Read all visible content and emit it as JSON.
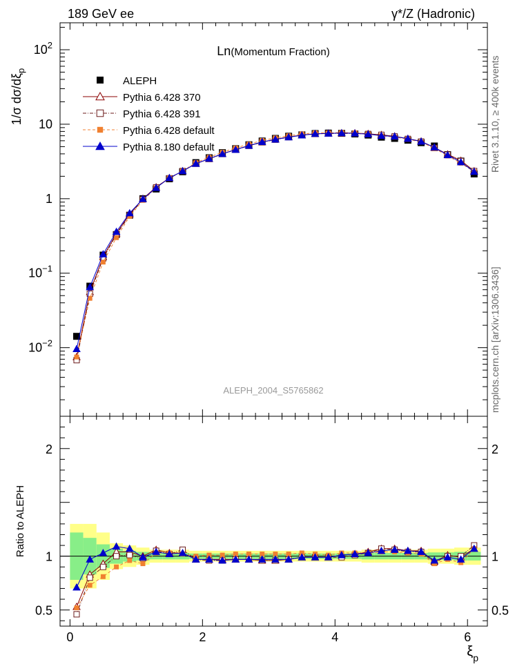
{
  "header": {
    "left_title": "189 GeV ee",
    "right_title": "γ*/Z (Hadronic)"
  },
  "side_labels": {
    "rivet": "Rivet 3.1.10, ≥ 400k events",
    "mcplots": "mcplots.cern.ch [arXiv:1306.3436]"
  },
  "chart_data": [
    {
      "type": "line",
      "panel": "main",
      "title": "Ln(Momentum Fraction)",
      "title_prefix": "Ln",
      "title_rest": "(Momentum Fraction)",
      "watermark": "ALEPH_2004_S5765862",
      "xlabel": "ξp",
      "ylabel": "1/σ dσ/dξp",
      "xlim": [
        -0.15,
        6.3
      ],
      "ylim": [
        0.0012,
        230
      ],
      "yscale": "log",
      "y_ticks": [
        {
          "value": 0.01,
          "base": "10",
          "exp": "−2"
        },
        {
          "value": 0.1,
          "base": "10",
          "exp": "−1"
        },
        {
          "value": 1,
          "base": "1",
          "exp": ""
        },
        {
          "value": 10,
          "base": "10",
          "exp": ""
        },
        {
          "value": 100,
          "base": "10",
          "exp": "2"
        }
      ],
      "legend": {
        "position": "top-left"
      },
      "x": [
        0.1,
        0.3,
        0.5,
        0.7,
        0.9,
        1.1,
        1.3,
        1.5,
        1.7,
        1.9,
        2.1,
        2.3,
        2.5,
        2.7,
        2.9,
        3.1,
        3.3,
        3.5,
        3.7,
        3.9,
        4.1,
        4.3,
        4.5,
        4.7,
        4.9,
        5.1,
        5.3,
        5.5,
        5.7,
        5.9,
        6.1
      ],
      "data": {
        "name": "ALEPH",
        "values": [
          0.0142,
          0.067,
          0.175,
          0.33,
          0.6,
          1.0,
          1.35,
          1.85,
          2.3,
          3.05,
          3.55,
          4.15,
          4.7,
          5.3,
          5.95,
          6.45,
          6.9,
          7.2,
          7.5,
          7.6,
          7.55,
          7.4,
          7.15,
          6.7,
          6.45,
          6.1,
          5.65,
          5.1,
          3.9,
          3.2,
          2.15
        ]
      },
      "series": [
        {
          "name": "Pythia 6.428 370",
          "color": "#8b0000",
          "marker": "triangle-open",
          "values": [
            0.0075,
            0.056,
            0.165,
            0.34,
            0.62,
            1.0,
            1.43,
            1.9,
            2.35,
            2.95,
            3.43,
            4.0,
            4.58,
            5.15,
            5.75,
            6.3,
            6.75,
            7.15,
            7.45,
            7.55,
            7.6,
            7.6,
            7.45,
            7.2,
            6.9,
            6.4,
            5.9,
            4.85,
            3.95,
            3.25,
            2.35
          ]
        },
        {
          "name": "Pythia 6.428 391",
          "color": "#6b1a1a",
          "marker": "square-open",
          "values": [
            0.0068,
            0.053,
            0.158,
            0.33,
            0.6,
            0.98,
            1.42,
            1.88,
            2.35,
            2.95,
            3.42,
            3.98,
            4.55,
            5.12,
            5.72,
            6.2,
            6.7,
            7.1,
            7.4,
            7.5,
            7.5,
            7.5,
            7.4,
            7.2,
            6.85,
            6.35,
            5.85,
            4.8,
            3.9,
            3.2,
            2.35
          ]
        },
        {
          "name": "Pythia 6.428 default",
          "color": "#f08030",
          "marker": "square-filled",
          "values": [
            0.0075,
            0.046,
            0.141,
            0.3,
            0.58,
            0.95,
            1.4,
            1.9,
            2.35,
            3.05,
            3.6,
            4.2,
            4.8,
            5.4,
            6.05,
            6.55,
            7.0,
            7.4,
            7.65,
            7.65,
            7.75,
            7.65,
            7.4,
            7.0,
            6.7,
            6.3,
            5.75,
            4.75,
            3.75,
            3.0,
            2.3
          ]
        },
        {
          "name": "Pythia 8.180 default",
          "color": "#0000cc",
          "marker": "triangle-filled",
          "values": [
            0.0096,
            0.065,
            0.18,
            0.36,
            0.64,
            0.99,
            1.4,
            1.9,
            2.35,
            2.95,
            3.45,
            4.0,
            4.55,
            5.15,
            5.8,
            6.25,
            6.7,
            7.1,
            7.45,
            7.5,
            7.6,
            7.55,
            7.35,
            7.0,
            6.85,
            6.4,
            5.85,
            4.9,
            3.85,
            3.1,
            2.3
          ]
        }
      ]
    },
    {
      "type": "line",
      "panel": "ratio",
      "ylabel": "Ratio to ALEPH",
      "xlabel": "ξp",
      "xlim": [
        -0.15,
        6.3
      ],
      "ylim": [
        0.35,
        2.3
      ],
      "x_ticks": [
        "0",
        "2",
        "4",
        "6"
      ],
      "y_ticks": [
        "0.5",
        "1",
        "2"
      ],
      "x": [
        0.1,
        0.3,
        0.5,
        0.7,
        0.9,
        1.1,
        1.3,
        1.5,
        1.7,
        1.9,
        2.1,
        2.3,
        2.5,
        2.7,
        2.9,
        3.1,
        3.3,
        3.5,
        3.7,
        3.9,
        4.1,
        4.3,
        4.5,
        4.7,
        4.9,
        5.1,
        5.3,
        5.5,
        5.7,
        5.9,
        6.1
      ],
      "band_inner": [
        0.22,
        0.17,
        0.11,
        0.07,
        0.05,
        0.04,
        0.03,
        0.03,
        0.03,
        0.025,
        0.025,
        0.025,
        0.025,
        0.025,
        0.025,
        0.025,
        0.025,
        0.025,
        0.025,
        0.025,
        0.025,
        0.025,
        0.03,
        0.03,
        0.03,
        0.03,
        0.03,
        0.035,
        0.035,
        0.04,
        0.04
      ],
      "band_outer": [
        0.3,
        0.3,
        0.22,
        0.12,
        0.1,
        0.08,
        0.06,
        0.06,
        0.06,
        0.05,
        0.05,
        0.05,
        0.05,
        0.05,
        0.05,
        0.05,
        0.05,
        0.05,
        0.05,
        0.05,
        0.05,
        0.05,
        0.06,
        0.06,
        0.06,
        0.06,
        0.06,
        0.07,
        0.07,
        0.08,
        0.08
      ],
      "series": [
        {
          "name": "Pythia 6.428 370",
          "color": "#8b0000",
          "marker": "triangle-open",
          "values": [
            0.53,
            0.83,
            0.93,
            1.04,
            1.04,
            1.0,
            1.06,
            1.03,
            1.03,
            0.97,
            0.97,
            0.97,
            0.97,
            0.97,
            0.96,
            0.96,
            0.97,
            0.99,
            0.99,
            0.99,
            1.01,
            1.02,
            1.04,
            1.07,
            1.07,
            1.05,
            1.05,
            0.95,
            1.01,
            0.99,
            1.07
          ]
        },
        {
          "name": "Pythia 6.428 391",
          "color": "#6b1a1a",
          "marker": "square-open",
          "values": [
            0.46,
            0.8,
            0.9,
            1.0,
            1.01,
            0.98,
            1.05,
            1.02,
            1.06,
            0.97,
            0.96,
            0.96,
            0.97,
            0.97,
            0.96,
            0.96,
            0.97,
            0.99,
            0.99,
            0.99,
            0.99,
            1.01,
            1.03,
            1.07,
            1.06,
            1.04,
            1.04,
            0.94,
            1.0,
            1.0,
            1.1
          ]
        },
        {
          "name": "Pythia 6.428 default",
          "color": "#f08030",
          "marker": "square-filled",
          "values": [
            0.52,
            0.73,
            0.81,
            0.9,
            0.96,
            0.93,
            1.03,
            1.03,
            1.02,
            1.0,
            1.01,
            1.01,
            1.02,
            1.02,
            1.02,
            1.02,
            1.02,
            1.03,
            1.02,
            1.01,
            1.03,
            1.03,
            1.03,
            1.04,
            1.04,
            1.03,
            1.02,
            0.93,
            0.97,
            0.94,
            1.07
          ]
        },
        {
          "name": "Pythia 8.180 default",
          "color": "#0000cc",
          "marker": "triangle-filled",
          "values": [
            0.71,
            0.97,
            1.03,
            1.09,
            1.07,
            0.99,
            1.04,
            1.02,
            1.03,
            0.97,
            0.97,
            0.96,
            0.97,
            0.97,
            0.97,
            0.97,
            0.97,
            0.99,
            0.99,
            0.99,
            1.01,
            1.02,
            1.03,
            1.05,
            1.06,
            1.05,
            1.04,
            0.96,
            0.99,
            0.97,
            1.07
          ]
        }
      ]
    }
  ]
}
